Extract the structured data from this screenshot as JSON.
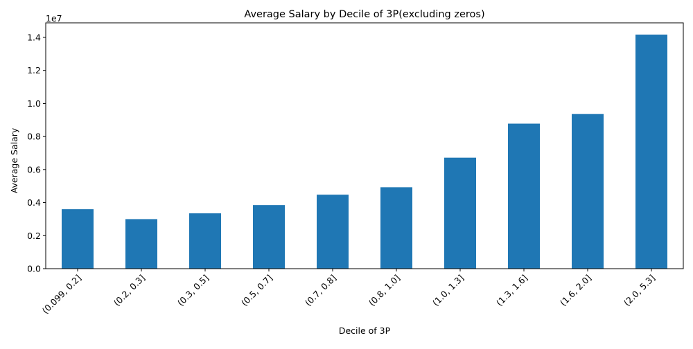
{
  "chart_data": {
    "type": "bar",
    "title": "Average Salary by Decile of 3P(excluding zeros)",
    "xlabel": "Decile of 3P",
    "ylabel": "Average Salary",
    "y_scale_label": "1e7",
    "categories": [
      "(0.099, 0.2]",
      "(0.2, 0.3]",
      "(0.3, 0.5]",
      "(0.5, 0.7]",
      "(0.7, 0.8]",
      "(0.8, 1.0]",
      "(1.0, 1.3]",
      "(1.3, 1.6]",
      "(1.6, 2.0]",
      "(2.0, 5.3]"
    ],
    "values": [
      3600000,
      3000000,
      3350000,
      3850000,
      4480000,
      4930000,
      6720000,
      8780000,
      9360000,
      14170000
    ],
    "ylim": [
      0,
      14880000
    ],
    "yticks": [
      0,
      2000000,
      4000000,
      6000000,
      8000000,
      10000000,
      12000000,
      14000000
    ],
    "ytick_labels": [
      "0.0",
      "0.2",
      "0.4",
      "0.6",
      "0.8",
      "1.0",
      "1.2",
      "1.4"
    ],
    "bar_color": "#1f77b4",
    "grid": false,
    "legend": "none"
  }
}
